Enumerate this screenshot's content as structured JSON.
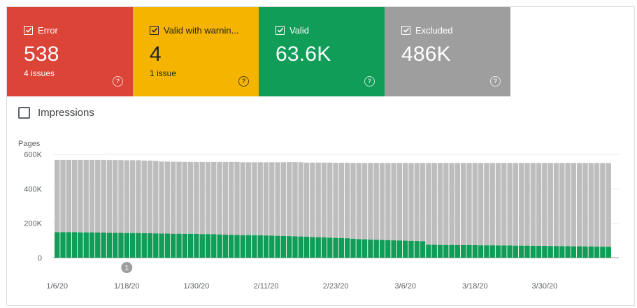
{
  "tiles": [
    {
      "label": "Error",
      "value": "538",
      "sub": "4 issues",
      "bg": "#db4437",
      "checked": true
    },
    {
      "label": "Valid with warnin...",
      "value": "4",
      "sub": "1 issue",
      "bg": "#f4b400",
      "checked": true
    },
    {
      "label": "Valid",
      "value": "63.6K",
      "sub": "",
      "bg": "#0f9d58",
      "checked": true
    },
    {
      "label": "Excluded",
      "value": "486K",
      "sub": "",
      "bg": "#9e9e9e",
      "checked": true
    }
  ],
  "impressions": {
    "label": "Impressions",
    "checked": false
  },
  "help_symbol": "?",
  "colors": {
    "valid": "#0f9d58",
    "excluded": "#bdbdbd",
    "annotation": "#9e9e9e"
  },
  "chart_data": {
    "type": "bar",
    "stacked": true,
    "ylabel": "Pages",
    "ylim": [
      0,
      600000
    ],
    "yticks": [
      0,
      200000,
      400000,
      600000
    ],
    "ytick_labels": [
      "0",
      "200K",
      "400K",
      "600K"
    ],
    "x_tick_labels": [
      "1/6/20",
      "1/18/20",
      "1/30/20",
      "2/11/20",
      "2/23/20",
      "3/6/20",
      "3/18/20",
      "3/30/20"
    ],
    "annotation": {
      "label": "1",
      "date": "1/18/20"
    },
    "start_date": "2020-01-06",
    "grid": true,
    "series": [
      {
        "key": "valid",
        "values": [
          148000,
          148000,
          148000,
          148000,
          147000,
          147000,
          147000,
          146000,
          146000,
          145000,
          144000,
          144000,
          143000,
          143000,
          143000,
          142000,
          142000,
          141000,
          140000,
          140000,
          139000,
          139000,
          138000,
          138000,
          138000,
          137000,
          137000,
          136000,
          135000,
          134000,
          133000,
          132000,
          131000,
          131000,
          130000,
          130000,
          129000,
          128000,
          127000,
          126000,
          125000,
          124000,
          123000,
          122000,
          120000,
          119000,
          118000,
          116000,
          115000,
          114000,
          113000,
          110000,
          108000,
          107000,
          105000,
          104000,
          103000,
          102000,
          101000,
          100000,
          99000,
          98000,
          97000,
          96000,
          75000,
          75000,
          74000,
          74000,
          74000,
          73000,
          73000,
          73000,
          73000,
          72000,
          72000,
          72000,
          71000,
          71000,
          71000,
          70000,
          70000,
          70000,
          69000,
          69000,
          69000,
          68000,
          68000,
          67000,
          67000,
          66000,
          66000,
          65000,
          65000,
          64000,
          63600,
          63600
        ]
      },
      {
        "key": "excluded",
        "values": [
          420000,
          420000,
          420000,
          420000,
          421000,
          421000,
          421000,
          422000,
          422000,
          422000,
          423000,
          423000,
          423000,
          423000,
          423000,
          422000,
          422000,
          421000,
          418000,
          418000,
          418000,
          418000,
          418000,
          418000,
          418000,
          419000,
          418000,
          420000,
          421000,
          422000,
          423000,
          424000,
          423000,
          423000,
          424000,
          424000,
          425000,
          426000,
          427000,
          428000,
          430000,
          431000,
          431000,
          430000,
          432000,
          433000,
          434000,
          436000,
          436000,
          437000,
          438000,
          440000,
          442000,
          443000,
          445000,
          446000,
          447000,
          448000,
          449000,
          450000,
          451000,
          452000,
          453000,
          454000,
          475000,
          475000,
          476000,
          476000,
          476000,
          477000,
          477000,
          477000,
          477000,
          478000,
          478000,
          478000,
          479000,
          479000,
          479000,
          480000,
          480000,
          480000,
          481000,
          481000,
          481000,
          482000,
          482000,
          483000,
          483000,
          484000,
          484000,
          485000,
          485000,
          486000,
          486000,
          486000
        ]
      }
    ]
  }
}
